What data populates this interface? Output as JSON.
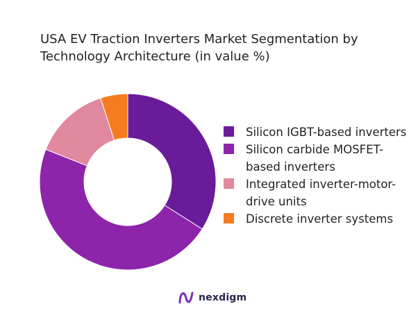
{
  "chart_data": {
    "type": "pie",
    "donut": true,
    "title": "USA EV Traction Inverters Market Segmentation by Technology Architecture (in value %)",
    "categories": [
      "Silicon IGBT-based inverters",
      "Silicon carbide MOSFET-based inverters",
      "Integrated inverter-motor-drive units",
      "Discrete inverter systems"
    ],
    "values": [
      34,
      47,
      14,
      5
    ],
    "colors": [
      "#6a1b9a",
      "#8e24aa",
      "#e0889e",
      "#f57c20"
    ],
    "legend_position": "right"
  },
  "logo": {
    "brand": "nexdigm",
    "brand_color": "#2a2550",
    "mark_color": "#7b2cbf"
  }
}
